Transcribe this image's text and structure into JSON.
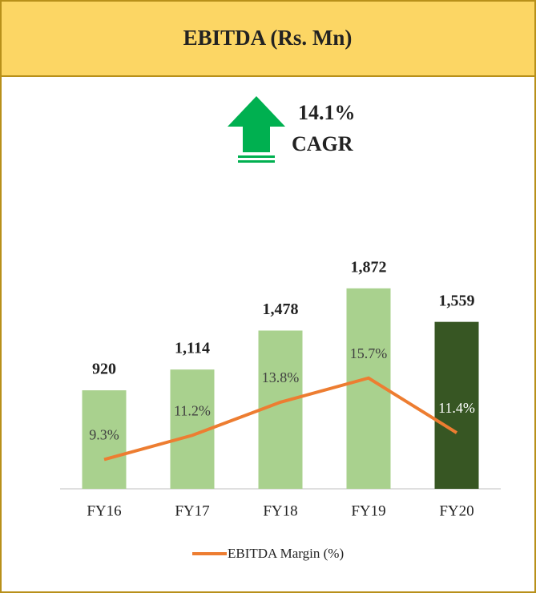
{
  "chart_data": {
    "type": "bar_line",
    "title": "EBITDA (Rs. Mn)",
    "annotation": [
      "14.1%",
      "CAGR"
    ],
    "categories": [
      "FY16",
      "FY17",
      "FY18",
      "FY19",
      "FY20"
    ],
    "series": [
      {
        "type": "bar",
        "colors": [
          "#a9d18e",
          "#a9d18e",
          "#a9d18e",
          "#a9d18e",
          "#375623"
        ],
        "values": [
          920,
          1114,
          1478,
          1872,
          1559
        ],
        "value_labels": [
          "920",
          "1,114",
          "1,478",
          "1,872",
          "1,559"
        ]
      },
      {
        "type": "line",
        "name": "EBITDA Margin (%)",
        "color": "#ed7d31",
        "axis": "y2",
        "values": [
          9.3,
          11.2,
          13.8,
          15.7,
          11.4
        ],
        "value_labels": [
          "9.3%",
          "11.2%",
          "13.8%",
          "15.7%",
          "11.4%"
        ]
      }
    ],
    "ylim": [
      0,
      2200
    ],
    "y2lim": [
      7,
      25.5
    ],
    "legend": "bottom"
  }
}
